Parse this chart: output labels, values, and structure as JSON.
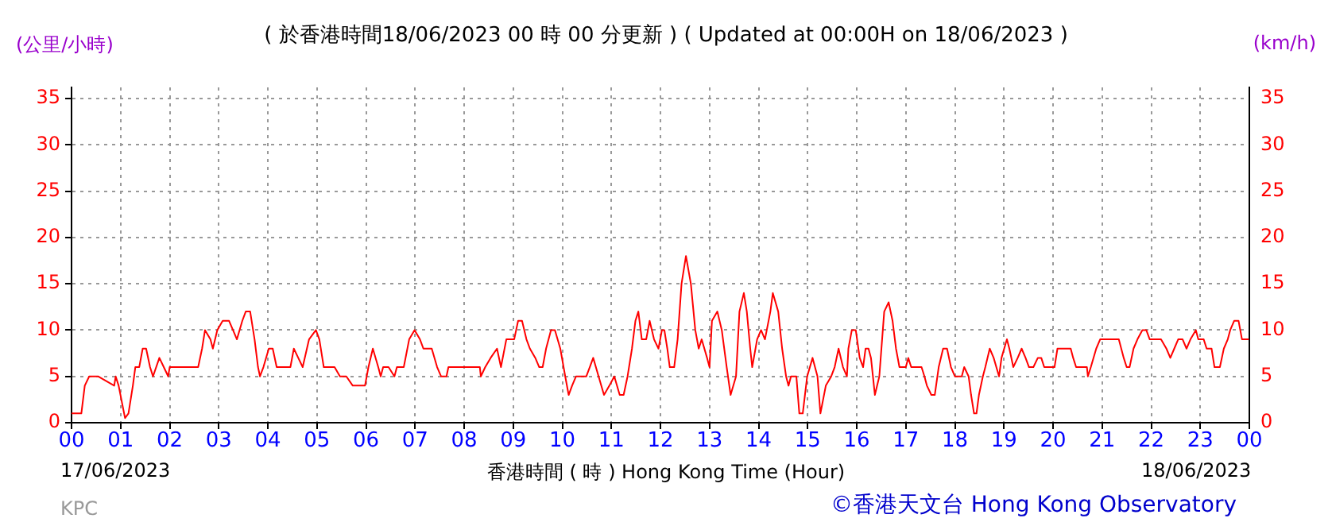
{
  "chart_data": {
    "type": "line",
    "title": "( 於香港時間18/06/2023 00 時 00 分更新 ) ( Updated at 00:00H on 18/06/2023 )",
    "ylabel": "(公里/小時)",
    "y2label": "(km/h)",
    "xlabel": "香港時間 ( 時 )  Hong Kong Time (Hour)",
    "annotations": [
      "17/06/2023",
      "18/06/2023",
      "KPC",
      "©香港天文台 Hong Kong Observatory"
    ],
    "xlim": [
      0,
      24
    ],
    "xticks": [
      {
        "value": 0,
        "label": "00"
      },
      {
        "value": 1,
        "label": "01"
      },
      {
        "value": 2,
        "label": "02"
      },
      {
        "value": 3,
        "label": "03"
      },
      {
        "value": 4,
        "label": "04"
      },
      {
        "value": 5,
        "label": "05"
      },
      {
        "value": 6,
        "label": "06"
      },
      {
        "value": 7,
        "label": "07"
      },
      {
        "value": 8,
        "label": "08"
      },
      {
        "value": 9,
        "label": "09"
      },
      {
        "value": 10,
        "label": "10"
      },
      {
        "value": 11,
        "label": "11"
      },
      {
        "value": 12,
        "label": "12"
      },
      {
        "value": 13,
        "label": "13"
      },
      {
        "value": 14,
        "label": "14"
      },
      {
        "value": 15,
        "label": "15"
      },
      {
        "value": 16,
        "label": "16"
      },
      {
        "value": 17,
        "label": "17"
      },
      {
        "value": 18,
        "label": "18"
      },
      {
        "value": 19,
        "label": "19"
      },
      {
        "value": 20,
        "label": "20"
      },
      {
        "value": 21,
        "label": "21"
      },
      {
        "value": 22,
        "label": "22"
      },
      {
        "value": 23,
        "label": "23"
      },
      {
        "value": 24,
        "label": "00"
      }
    ],
    "ylim": [
      0,
      36.2
    ],
    "yticks": [
      0,
      5,
      10,
      15,
      20,
      25,
      30,
      35
    ],
    "y2lim": [
      0,
      36.2
    ],
    "y2ticks": [
      0,
      5,
      10,
      15,
      20,
      25,
      30,
      35
    ],
    "grid": true,
    "legend": false,
    "marker": "none",
    "line_style": "solid",
    "series": [
      {
        "color": "#ff0000",
        "x": [
          0,
          0.2,
          0.27,
          0.36,
          0.54,
          0.87,
          0.9,
          0.96,
          1.09,
          1.16,
          1.25,
          1.3,
          1.38,
          1.45,
          1.52,
          1.6,
          1.66,
          1.79,
          1.88,
          1.97,
          2.0,
          2.58,
          2.66,
          2.72,
          2.83,
          2.88,
          2.97,
          3.08,
          3.21,
          3.29,
          3.37,
          3.48,
          3.55,
          3.64,
          3.73,
          3.8,
          3.84,
          3.91,
          4.02,
          4.1,
          4.18,
          4.46,
          4.53,
          4.62,
          4.71,
          4.84,
          4.98,
          5.05,
          5.14,
          5.36,
          5.47,
          5.6,
          5.73,
          5.98,
          6.05,
          6.14,
          6.25,
          6.3,
          6.35,
          6.46,
          6.58,
          6.63,
          6.77,
          6.88,
          6.99,
          7.1,
          7.17,
          7.34,
          7.45,
          7.53,
          7.64,
          7.68,
          8.32,
          8.34,
          8.43,
          8.54,
          8.67,
          8.75,
          8.86,
          9.02,
          9.1,
          9.18,
          9.27,
          9.34,
          9.45,
          9.53,
          9.6,
          9.67,
          9.77,
          9.85,
          9.96,
          10.06,
          10.13,
          10.2,
          10.28,
          10.49,
          10.56,
          10.63,
          10.74,
          10.85,
          10.96,
          11.06,
          11.17,
          11.25,
          11.33,
          11.42,
          11.49,
          11.55,
          11.62,
          11.71,
          11.78,
          11.87,
          11.96,
          12.03,
          12.08,
          12.14,
          12.19,
          12.28,
          12.35,
          12.43,
          12.52,
          12.62,
          12.71,
          12.78,
          12.84,
          12.95,
          13.0,
          13.05,
          13.16,
          13.25,
          13.35,
          13.43,
          13.54,
          13.61,
          13.7,
          13.76,
          13.83,
          13.87,
          13.97,
          14.05,
          14.13,
          14.24,
          14.29,
          14.4,
          14.48,
          14.56,
          14.61,
          14.66,
          14.77,
          14.83,
          14.9,
          14.99,
          15.1,
          15.2,
          15.26,
          15.37,
          15.48,
          15.55,
          15.63,
          15.72,
          15.8,
          15.83,
          15.9,
          15.98,
          16.06,
          16.13,
          16.18,
          16.24,
          16.29,
          16.37,
          16.46,
          16.56,
          16.65,
          16.73,
          16.8,
          16.87,
          17.0,
          17.05,
          17.11,
          17.32,
          17.38,
          17.43,
          17.52,
          17.59,
          17.67,
          17.76,
          17.84,
          17.92,
          18.0,
          18.14,
          18.19,
          18.28,
          18.33,
          18.39,
          18.44,
          18.49,
          18.57,
          18.62,
          18.71,
          18.79,
          18.9,
          18.95,
          19.06,
          19.11,
          19.19,
          19.28,
          19.36,
          19.44,
          19.51,
          19.6,
          19.69,
          19.76,
          19.82,
          20.03,
          20.09,
          20.36,
          20.41,
          20.47,
          20.69,
          20.71,
          20.77,
          20.88,
          20.96,
          21.34,
          21.44,
          21.5,
          21.56,
          21.64,
          21.72,
          21.82,
          21.9,
          21.97,
          22.2,
          22.31,
          22.39,
          22.47,
          22.55,
          22.64,
          22.72,
          22.8,
          22.91,
          22.96,
          23.07,
          23.13,
          23.23,
          23.29,
          23.4,
          23.48,
          23.56,
          23.61,
          23.69,
          23.78,
          23.85,
          23.99
        ],
        "values": [
          1,
          1,
          4,
          5,
          5,
          4,
          5,
          4,
          0.5,
          1,
          4,
          6,
          6,
          8,
          8,
          6,
          5,
          7,
          6,
          5,
          6,
          6,
          8,
          10,
          9,
          8,
          10,
          11,
          11,
          10,
          9,
          11,
          12,
          12,
          9,
          6,
          5,
          6,
          8,
          8,
          6,
          6,
          8,
          7,
          6,
          9,
          10,
          9,
          6,
          6,
          5,
          5,
          4,
          4,
          6,
          8,
          6,
          5,
          6,
          6,
          5,
          6,
          6,
          9,
          10,
          9,
          8,
          8,
          6,
          5,
          5,
          6,
          6,
          5,
          6,
          7,
          8,
          6,
          9,
          9,
          11,
          11,
          9,
          8,
          7,
          6,
          6,
          8,
          10,
          10,
          8,
          5,
          3,
          4,
          5,
          5,
          6,
          7,
          5,
          3,
          4,
          5,
          3,
          3,
          5,
          8,
          11,
          12,
          9,
          9,
          11,
          9,
          8,
          10,
          10,
          8,
          6,
          6,
          9,
          15,
          18,
          15,
          10,
          8,
          9,
          7,
          6,
          11,
          12,
          10,
          6,
          3,
          5,
          12,
          14,
          12,
          8,
          6,
          9,
          10,
          9,
          12,
          14,
          12,
          8,
          5,
          4,
          5,
          5,
          1,
          1,
          5,
          7,
          5,
          1,
          4,
          5,
          6,
          8,
          6,
          5,
          8,
          10,
          10,
          7,
          6,
          8,
          8,
          7,
          3,
          5,
          12,
          13,
          11,
          8,
          6,
          6,
          7,
          6,
          6,
          5,
          4,
          3,
          3,
          6,
          8,
          8,
          6,
          5,
          5,
          6,
          5,
          3,
          1,
          1,
          3,
          5,
          6,
          8,
          7,
          5,
          7,
          9,
          8,
          6,
          7,
          8,
          7,
          6,
          6,
          7,
          7,
          6,
          6,
          8,
          8,
          7,
          6,
          6,
          5,
          6,
          8,
          9,
          9,
          7,
          6,
          6,
          8,
          9,
          10,
          10,
          9,
          9,
          8,
          7,
          8,
          9,
          9,
          8,
          9,
          10,
          9,
          9,
          8,
          8,
          6,
          6,
          8,
          9,
          10,
          11,
          11,
          9,
          9
        ]
      }
    ]
  }
}
